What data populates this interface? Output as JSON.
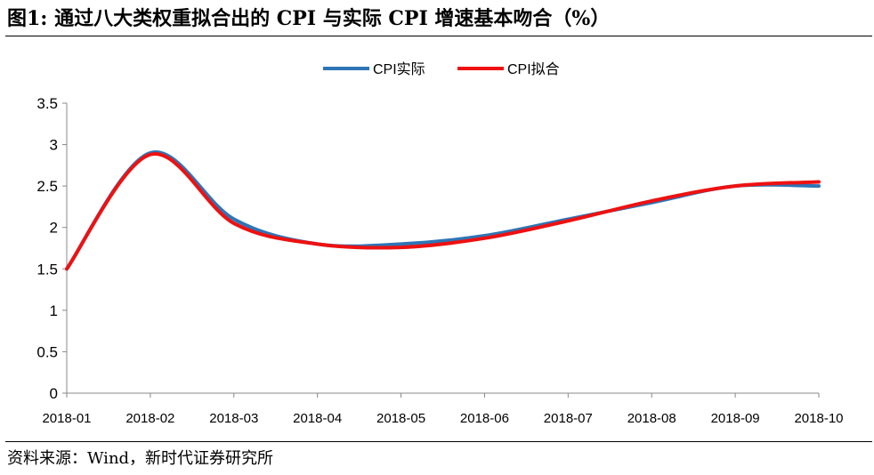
{
  "header": {
    "title": "图1:   通过八大类权重拟合出的 CPI 与实际 CPI 增速基本吻合（%）"
  },
  "footer": {
    "source": "资料来源：Wind，新时代证券研究所"
  },
  "chart_data": {
    "type": "line",
    "categories": [
      "2018-01",
      "2018-02",
      "2018-03",
      "2018-04",
      "2018-05",
      "2018-06",
      "2018-07",
      "2018-08",
      "2018-09",
      "2018-10"
    ],
    "series": [
      {
        "name": "CPI实际",
        "color": "#2e75b6",
        "values": [
          1.5,
          2.9,
          2.1,
          1.8,
          1.8,
          1.9,
          2.1,
          2.3,
          2.5,
          2.5
        ]
      },
      {
        "name": "CPI拟合",
        "color": "#ee1111",
        "values": [
          1.5,
          2.88,
          2.05,
          1.8,
          1.76,
          1.87,
          2.08,
          2.32,
          2.5,
          2.55
        ]
      }
    ],
    "ylim": [
      0,
      3.5
    ],
    "yticks": [
      "0",
      "0.5",
      "1",
      "1.5",
      "2",
      "2.5",
      "3",
      "3.5"
    ],
    "grid": false,
    "legend": "top-center",
    "smooth": true
  }
}
